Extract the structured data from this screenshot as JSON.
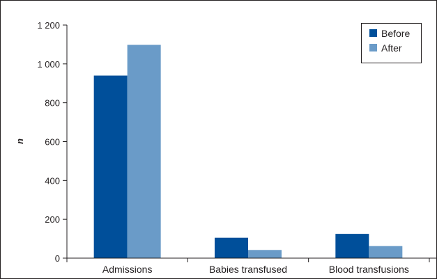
{
  "chart_data": {
    "type": "bar",
    "title": "",
    "xlabel": "",
    "ylabel": "n",
    "ylim": [
      0,
      1200
    ],
    "yticks": [
      0,
      200,
      400,
      600,
      800,
      1000,
      1200
    ],
    "ytick_labels": [
      "0",
      "200",
      "400",
      "600",
      "800",
      "1 000",
      "1 200"
    ],
    "categories": [
      "Admissions",
      "Babies transfused",
      "Blood transfusions"
    ],
    "series": [
      {
        "name": "Before",
        "color": "#004f9a",
        "values": [
          940,
          105,
          125
        ]
      },
      {
        "name": "After",
        "color": "#6a9bc8",
        "values": [
          1098,
          42,
          62
        ]
      }
    ],
    "legend": "top-right",
    "grid": false
  }
}
